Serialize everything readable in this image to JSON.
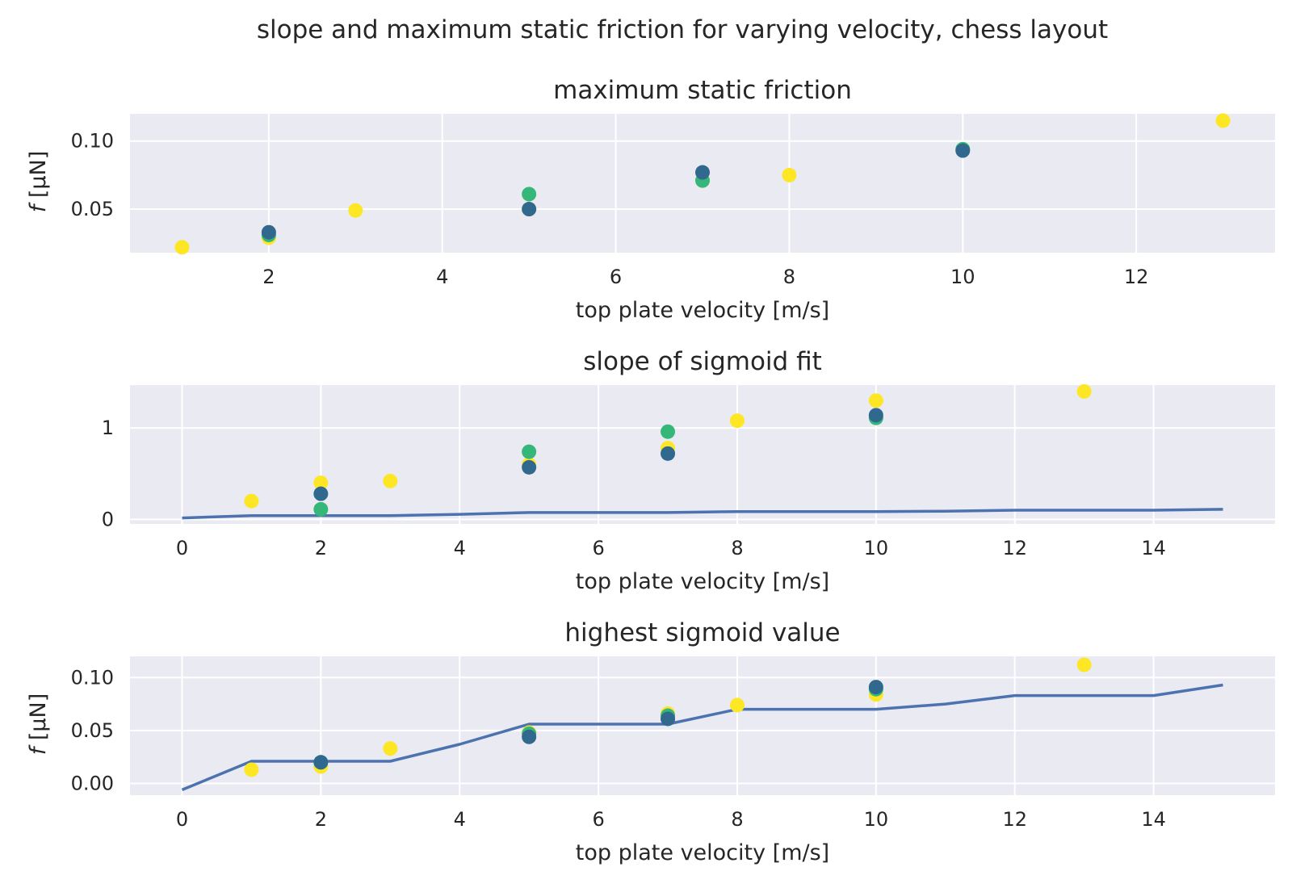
{
  "figure": {
    "title": "slope and maximum static friction for varying velocity, chess layout"
  },
  "colors": {
    "background": "#ffffff",
    "axes_face": "#eaeaf2",
    "grid": "#ffffff",
    "text": "#262626",
    "line": "#4c72b0",
    "yellow": "#fde725",
    "green": "#35b779",
    "blue": "#31688e"
  },
  "chart_data": [
    {
      "type": "scatter",
      "title": "maximum static friction",
      "xlabel": "top plate velocity [m/s]",
      "ylabel": "f [μN]",
      "ylabel_italic": "f",
      "ylabel_rest": " [μN]",
      "xlim": [
        0.4,
        13.6
      ],
      "ylim": [
        0.018,
        0.12
      ],
      "xticks": [
        2,
        4,
        6,
        8,
        10,
        12
      ],
      "xtick_labels": [
        "2",
        "4",
        "6",
        "8",
        "10",
        "12"
      ],
      "yticks": [
        0.05,
        0.1
      ],
      "ytick_labels": [
        "0.05",
        "0.10"
      ],
      "grid": true,
      "series": [
        {
          "color": "yellow",
          "x": [
            1,
            2,
            3,
            5,
            7,
            8,
            10,
            13
          ],
          "y": [
            0.022,
            0.029,
            0.049,
            0.05,
            0.071,
            0.075,
            0.094,
            0.115
          ]
        },
        {
          "color": "green",
          "x": [
            2,
            5,
            7,
            10
          ],
          "y": [
            0.031,
            0.061,
            0.071,
            0.094
          ]
        },
        {
          "color": "blue",
          "x": [
            2,
            5,
            7,
            10
          ],
          "y": [
            0.033,
            0.05,
            0.077,
            0.093
          ]
        }
      ],
      "lines": []
    },
    {
      "type": "scatter",
      "title": "slope of sigmoid fit",
      "xlabel": "top plate velocity [m/s]",
      "ylabel": "",
      "xlim": [
        -0.75,
        15.75
      ],
      "ylim": [
        -0.05,
        1.47
      ],
      "xticks": [
        0,
        2,
        4,
        6,
        8,
        10,
        12,
        14
      ],
      "xtick_labels": [
        "0",
        "2",
        "4",
        "6",
        "8",
        "10",
        "12",
        "14"
      ],
      "yticks": [
        0,
        1
      ],
      "ytick_labels": [
        "0",
        "1"
      ],
      "grid": true,
      "series": [
        {
          "color": "yellow",
          "x": [
            1,
            2,
            3,
            5,
            7,
            8,
            10,
            13
          ],
          "y": [
            0.2,
            0.4,
            0.42,
            0.6,
            0.78,
            1.08,
            1.3,
            1.4
          ]
        },
        {
          "color": "green",
          "x": [
            2,
            5,
            7,
            10
          ],
          "y": [
            0.11,
            0.74,
            0.96,
            1.11
          ]
        },
        {
          "color": "blue",
          "x": [
            2,
            5,
            7,
            10
          ],
          "y": [
            0.28,
            0.57,
            0.72,
            1.14
          ]
        }
      ],
      "lines": [
        {
          "color": "line",
          "x": [
            0,
            1,
            2,
            3,
            4,
            5,
            6,
            7,
            8,
            9,
            10,
            11,
            12,
            13,
            14,
            15
          ],
          "y": [
            0.015,
            0.04,
            0.04,
            0.04,
            0.055,
            0.075,
            0.075,
            0.075,
            0.085,
            0.085,
            0.085,
            0.09,
            0.1,
            0.1,
            0.1,
            0.11
          ]
        }
      ]
    },
    {
      "type": "scatter",
      "title": "highest sigmoid value",
      "xlabel": "top plate velocity [m/s]",
      "ylabel": "f [μN]",
      "ylabel_italic": "f",
      "ylabel_rest": " [μN]",
      "xlim": [
        -0.75,
        15.75
      ],
      "ylim": [
        -0.011,
        0.12
      ],
      "xticks": [
        0,
        2,
        4,
        6,
        8,
        10,
        12,
        14
      ],
      "xtick_labels": [
        "0",
        "2",
        "4",
        "6",
        "8",
        "10",
        "12",
        "14"
      ],
      "yticks": [
        0.0,
        0.05,
        0.1
      ],
      "ytick_labels": [
        "0.00",
        "0.05",
        "0.10"
      ],
      "grid": true,
      "series": [
        {
          "color": "yellow",
          "x": [
            1,
            2,
            3,
            5,
            7,
            8,
            10,
            13
          ],
          "y": [
            0.013,
            0.016,
            0.033,
            0.048,
            0.066,
            0.074,
            0.084,
            0.112
          ]
        },
        {
          "color": "green",
          "x": [
            2,
            5,
            7,
            10
          ],
          "y": [
            0.02,
            0.047,
            0.064,
            0.089
          ]
        },
        {
          "color": "blue",
          "x": [
            2,
            5,
            7,
            10
          ],
          "y": [
            0.02,
            0.044,
            0.061,
            0.091
          ]
        }
      ],
      "lines": [
        {
          "color": "line",
          "x": [
            0,
            1,
            2,
            3,
            4,
            5,
            6,
            7,
            8,
            9,
            10,
            11,
            12,
            13,
            14,
            15
          ],
          "y": [
            -0.006,
            0.021,
            0.021,
            0.021,
            0.037,
            0.056,
            0.056,
            0.056,
            0.07,
            0.07,
            0.07,
            0.075,
            0.083,
            0.083,
            0.083,
            0.093
          ]
        }
      ]
    }
  ]
}
